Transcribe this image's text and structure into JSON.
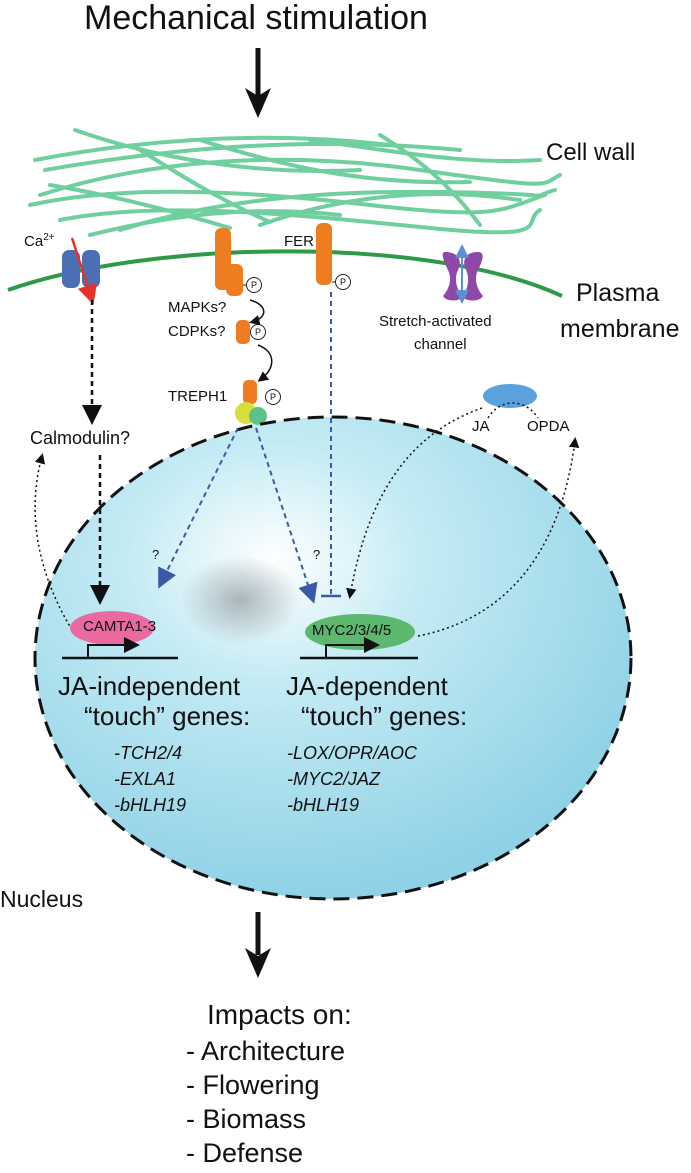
{
  "title": "Mechanical stimulation",
  "labels": {
    "cell_wall": "Cell wall",
    "plasma": "Plasma",
    "membrane": "membrane",
    "calcium": "Ca",
    "calcium_charge": "2+",
    "mapks": "MAPKs?",
    "cdpks": "CDPKs?",
    "treph1": "TREPH1",
    "fer": "FER",
    "stretch": "Stretch-activated",
    "channel": "channel",
    "ja": "JA",
    "opda": "OPDA",
    "calmodulin": "Calmodulin?",
    "question": "?",
    "phospho": "P",
    "camta": "CAMTA1-3",
    "myc": "MYC2/3/4/5",
    "nucleus": "Nucleus"
  },
  "independent": {
    "line1": "JA-independent",
    "line2": "“touch” genes:",
    "genes": [
      "-TCH2/4",
      "-EXLA1",
      "-bHLH19"
    ]
  },
  "dependent": {
    "line1": "JA-dependent",
    "line2": "“touch” genes:",
    "genes": [
      "-LOX/OPR/AOC",
      "-MYC2/JAZ",
      "-bHLH19"
    ]
  },
  "impacts": {
    "heading": "Impacts on:",
    "items": [
      "- Architecture",
      "- Flowering",
      "- Biomass",
      "- Defense"
    ]
  },
  "colors": {
    "fiber": "#6fcf9f",
    "membrane": "#2e9a48",
    "ca_channel": "#4a6fb5",
    "receptor": "#ee7d22",
    "stretch_channel": "#8e49a7",
    "nucleus_fill": "#aee0ee",
    "camta": "#e86aa0",
    "myc": "#5db86f",
    "ja_blob": "#5ba2dc",
    "dashed_blue": "#3a5aa8",
    "red_arrow": "#e8302a"
  }
}
